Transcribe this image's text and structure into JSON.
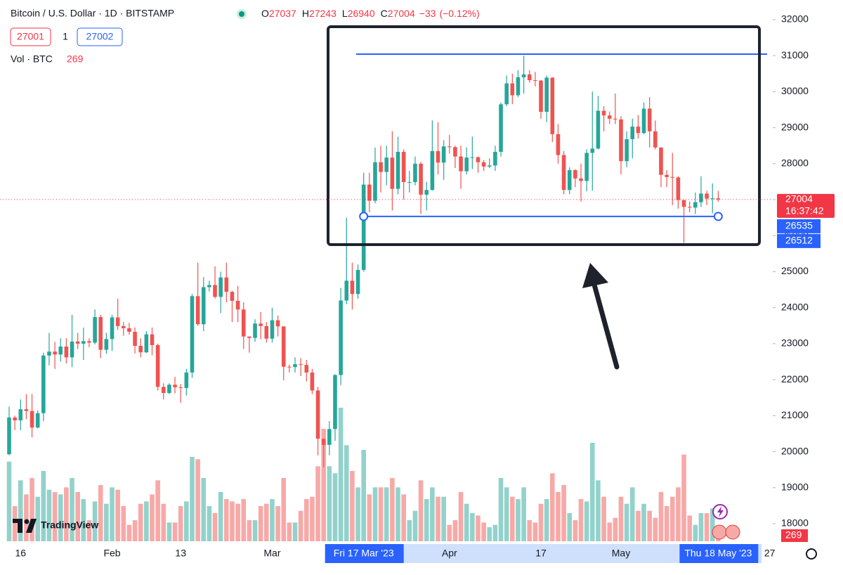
{
  "chart_data": {
    "type": "candlestick",
    "title": "Bitcoin / U.S. Dollar · 1D · BITSTAMP",
    "ohlc_labels": [
      "O",
      "H",
      "L",
      "C"
    ],
    "change": "−33",
    "change_pct": "(−0.12%)",
    "bid": 27001,
    "spread": 1,
    "ask": 27002,
    "countdown": "16:37:42",
    "line_price": 26535,
    "cursor_price": 26512,
    "logo": "TradingView",
    "up_color": "#26a69a",
    "down_color": "#ef5350",
    "grid": false,
    "x": [
      "2023-01-14",
      "2023-01-15",
      "2023-01-16",
      "2023-01-17",
      "2023-01-18",
      "2023-01-19",
      "2023-01-20",
      "2023-01-21",
      "2023-01-22",
      "2023-01-23",
      "2023-01-24",
      "2023-01-25",
      "2023-01-26",
      "2023-01-27",
      "2023-01-28",
      "2023-01-29",
      "2023-01-30",
      "2023-01-31",
      "2023-02-01",
      "2023-02-02",
      "2023-02-03",
      "2023-02-04",
      "2023-02-05",
      "2023-02-06",
      "2023-02-07",
      "2023-02-08",
      "2023-02-09",
      "2023-02-10",
      "2023-02-11",
      "2023-02-12",
      "2023-02-13",
      "2023-02-14",
      "2023-02-15",
      "2023-02-16",
      "2023-02-17",
      "2023-02-18",
      "2023-02-19",
      "2023-02-20",
      "2023-02-21",
      "2023-02-22",
      "2023-02-23",
      "2023-02-24",
      "2023-02-25",
      "2023-02-26",
      "2023-02-27",
      "2023-02-28",
      "2023-03-01",
      "2023-03-02",
      "2023-03-03",
      "2023-03-04",
      "2023-03-05",
      "2023-03-06",
      "2023-03-07",
      "2023-03-08",
      "2023-03-09",
      "2023-03-10",
      "2023-03-11",
      "2023-03-12",
      "2023-03-13",
      "2023-03-14",
      "2023-03-15",
      "2023-03-16",
      "2023-03-17",
      "2023-03-18",
      "2023-03-19",
      "2023-03-20",
      "2023-03-21",
      "2023-03-22",
      "2023-03-23",
      "2023-03-24",
      "2023-03-25",
      "2023-03-26",
      "2023-03-27",
      "2023-03-28",
      "2023-03-29",
      "2023-03-30",
      "2023-03-31",
      "2023-04-01",
      "2023-04-02",
      "2023-04-03",
      "2023-04-04",
      "2023-04-05",
      "2023-04-06",
      "2023-04-07",
      "2023-04-08",
      "2023-04-09",
      "2023-04-10",
      "2023-04-11",
      "2023-04-12",
      "2023-04-13",
      "2023-04-14",
      "2023-04-15",
      "2023-04-16",
      "2023-04-17",
      "2023-04-18",
      "2023-04-19",
      "2023-04-20",
      "2023-04-21",
      "2023-04-22",
      "2023-04-23",
      "2023-04-24",
      "2023-04-25",
      "2023-04-26",
      "2023-04-27",
      "2023-04-28",
      "2023-04-29",
      "2023-04-30",
      "2023-05-01",
      "2023-05-02",
      "2023-05-03",
      "2023-05-04",
      "2023-05-05",
      "2023-05-06",
      "2023-05-07",
      "2023-05-08",
      "2023-05-09",
      "2023-05-10",
      "2023-05-11",
      "2023-05-12",
      "2023-05-13",
      "2023-05-14",
      "2023-05-15",
      "2023-05-16",
      "2023-05-17",
      "2023-05-18"
    ],
    "open": [
      19930,
      20950,
      20870,
      21180,
      21130,
      20670,
      21070,
      22670,
      22780,
      22700,
      22920,
      22620,
      23060,
      23000,
      23070,
      23030,
      23740,
      22830,
      23130,
      23730,
      23490,
      23430,
      23330,
      22940,
      22760,
      23260,
      22960,
      21800,
      21630,
      21860,
      21790,
      21770,
      22200,
      24320,
      23540,
      24570,
      24630,
      24300,
      24840,
      24440,
      24190,
      23950,
      23200,
      23160,
      23560,
      23490,
      23140,
      23650,
      23480,
      22360,
      22350,
      22430,
      22410,
      22200,
      21700,
      20360,
      20190,
      20630,
      22130,
      24200,
      24750,
      24380,
      25050,
      27420,
      26970,
      28040,
      27770,
      28170,
      27300,
      28330,
      27490,
      27490,
      28000,
      27140,
      27270,
      28350,
      28030,
      28480,
      28460,
      28200,
      27790,
      28170,
      28180,
      28040,
      27920,
      27950,
      28330,
      29650,
      30230,
      29900,
      30400,
      30480,
      30320,
      30310,
      29440,
      30390,
      28820,
      28240,
      27270,
      27820,
      27590,
      27520,
      28300,
      28420,
      29470,
      29340,
      29250,
      29230,
      28070,
      28680,
      29030,
      28850,
      29530,
      28900,
      28450,
      27690,
      27630,
      27620,
      26990,
      26800,
      26780,
      26930,
      27170,
      27030,
      27037
    ],
    "high": [
      21250,
      21000,
      21450,
      21600,
      21600,
      21150,
      22750,
      23300,
      23050,
      23150,
      23150,
      23800,
      23300,
      23450,
      23150,
      23950,
      23800,
      23300,
      23800,
      24250,
      23600,
      23580,
      23450,
      23150,
      23350,
      23450,
      23000,
      21900,
      21900,
      22080,
      21880,
      22300,
      24380,
      25250,
      24850,
      24750,
      25150,
      25000,
      25250,
      24470,
      24600,
      24150,
      23200,
      23680,
      23880,
      23600,
      24000,
      23780,
      23480,
      22420,
      22620,
      22600,
      22550,
      22300,
      21800,
      20360,
      20850,
      22150,
      24550,
      26500,
      25250,
      25200,
      27750,
      27750,
      28450,
      28500,
      28500,
      28900,
      28750,
      28400,
      27800,
      28200,
      28050,
      27500,
      29200,
      29150,
      28650,
      28800,
      28500,
      28500,
      28450,
      28750,
      28200,
      28100,
      28150,
      28500,
      29700,
      30450,
      30500,
      30600,
      31000,
      30600,
      30550,
      30320,
      30450,
      30400,
      29100,
      28350,
      27900,
      27850,
      28000,
      28400,
      30000,
      29880,
      29600,
      29450,
      29950,
      29320,
      28900,
      29250,
      29350,
      29700,
      29850,
      29200,
      28450,
      27820,
      28300,
      27650,
      26990,
      26950,
      27200,
      27650,
      27250,
      27450,
      27243
    ],
    "low": [
      19900,
      20600,
      20600,
      20900,
      20400,
      20650,
      20850,
      22400,
      22300,
      22500,
      22450,
      22350,
      22850,
      22550,
      22900,
      22980,
      22600,
      22720,
      22800,
      23380,
      23220,
      23250,
      22730,
      22620,
      22740,
      22680,
      21700,
      21450,
      21600,
      21620,
      21360,
      21560,
      22050,
      23500,
      23350,
      24450,
      24250,
      23850,
      24150,
      23600,
      23600,
      22850,
      22750,
      23050,
      23120,
      23030,
      23030,
      23200,
      21980,
      22200,
      22200,
      22100,
      21950,
      21600,
      19900,
      19570,
      19900,
      20300,
      21850,
      24100,
      23950,
      24250,
      25000,
      26650,
      26900,
      27200,
      27400,
      26700,
      27150,
      27000,
      27200,
      27400,
      26600,
      26700,
      27250,
      27700,
      27550,
      28280,
      27880,
      27300,
      27700,
      27850,
      27750,
      27800,
      27880,
      27800,
      28200,
      29600,
      29650,
      29850,
      29950,
      30250,
      30150,
      29250,
      29150,
      28600,
      28000,
      27150,
      27150,
      27350,
      26950,
      27230,
      27250,
      28400,
      28900,
      29100,
      29100,
      27700,
      27900,
      28150,
      28700,
      28820,
      28450,
      28400,
      27350,
      27350,
      26850,
      26750,
      25800,
      26650,
      26600,
      26800,
      26850,
      26620,
      26940
    ],
    "close": [
      20950,
      20870,
      21180,
      21130,
      20670,
      21070,
      22670,
      22780,
      22700,
      22920,
      22620,
      23060,
      23000,
      23070,
      23030,
      23740,
      22830,
      23130,
      23730,
      23490,
      23430,
      23330,
      22940,
      22760,
      23260,
      22960,
      21800,
      21630,
      21860,
      21790,
      21770,
      22200,
      24320,
      23540,
      24570,
      24630,
      24300,
      24840,
      24440,
      24190,
      23950,
      23200,
      23160,
      23560,
      23490,
      23140,
      23650,
      23480,
      22360,
      22350,
      22430,
      22410,
      22200,
      21700,
      20360,
      20190,
      20630,
      22130,
      24200,
      24750,
      24380,
      25050,
      27420,
      26970,
      28040,
      27770,
      28170,
      27300,
      28330,
      27490,
      27490,
      28000,
      27140,
      27270,
      28350,
      28030,
      28480,
      28460,
      28200,
      27790,
      28170,
      28180,
      28040,
      27920,
      27950,
      28330,
      29650,
      30230,
      29900,
      30400,
      30480,
      30320,
      30310,
      29440,
      30390,
      28820,
      28240,
      27270,
      27820,
      27590,
      27520,
      28300,
      28420,
      29470,
      29340,
      29250,
      29230,
      28070,
      28680,
      29030,
      28850,
      29530,
      28900,
      28450,
      27690,
      27630,
      27620,
      26990,
      26800,
      26780,
      26930,
      27170,
      27030,
      27037,
      27004
    ],
    "volume": {
      "name": "Vol · BTC",
      "up_color": "#92d2cb",
      "down_color": "#f7a9a7",
      "values": [
        3400,
        1500,
        2600,
        2000,
        2700,
        1900,
        3000,
        2200,
        2100,
        2000,
        2300,
        2700,
        2100,
        1800,
        900,
        1700,
        2400,
        1600,
        2300,
        2200,
        1500,
        700,
        900,
        1600,
        1700,
        2000,
        2600,
        1600,
        800,
        800,
        1500,
        1700,
        3600,
        3500,
        2700,
        1500,
        1200,
        2100,
        1800,
        1700,
        1600,
        1800,
        900,
        900,
        1500,
        1600,
        1800,
        1500,
        2700,
        800,
        800,
        1300,
        1800,
        1900,
        3200,
        4800,
        3200,
        2900,
        5700,
        4100,
        3000,
        2300,
        3900,
        2000,
        2300,
        2300,
        2300,
        2700,
        2300,
        2000,
        900,
        1300,
        2600,
        1800,
        2300,
        1900,
        1900,
        700,
        900,
        2100,
        1600,
        1200,
        1100,
        800,
        600,
        700,
        2700,
        2300,
        1900,
        1800,
        2300,
        900,
        800,
        1600,
        1800,
        2900,
        2100,
        2400,
        1200,
        900,
        1800,
        1700,
        4200,
        2600,
        1900,
        800,
        1000,
        1900,
        1600,
        2300,
        1300,
        1600,
        1300,
        1000,
        2100,
        1500,
        1900,
        2300,
        3700,
        1100,
        700,
        1200,
        1200,
        1400,
        269
      ]
    },
    "ylim": [
      18000,
      32000
    ],
    "yticks": [
      18000,
      19000,
      20000,
      21000,
      22000,
      23000,
      24000,
      25000,
      26000,
      27000,
      28000,
      29000,
      30000,
      31000,
      32000
    ],
    "xticks": [
      {
        "value": "2023-01-16",
        "label": "16"
      },
      {
        "value": "2023-02-01",
        "label": "Feb"
      },
      {
        "value": "2023-02-13",
        "label": "13"
      },
      {
        "value": "2023-03-01",
        "label": "Mar"
      },
      {
        "value": "2023-04-01",
        "label": "Apr"
      },
      {
        "value": "2023-04-17",
        "label": "17"
      },
      {
        "value": "2023-05-01",
        "label": "May"
      },
      {
        "value": "2023-05-27",
        "label": "27"
      }
    ],
    "range_labels": [
      {
        "value": "2023-03-17",
        "label": "Fri 17 Mar '23"
      },
      {
        "value": "2023-05-18",
        "label": "Thu 18 May '23"
      }
    ]
  }
}
